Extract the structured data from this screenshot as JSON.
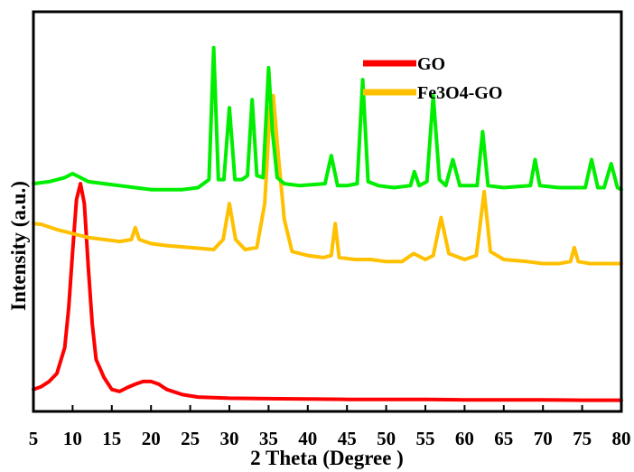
{
  "chart_data": {
    "type": "line",
    "title": "",
    "xlabel": "2 Theta (Degree )",
    "ylabel": "Intensity (a.u.)",
    "xlim": [
      5,
      80
    ],
    "ylim": [
      0,
      10
    ],
    "x_ticks": [
      "5",
      "10",
      "15",
      "20",
      "25",
      "30",
      "35",
      "40",
      "45",
      "50",
      "55",
      "60",
      "65",
      "70",
      "75",
      "80"
    ],
    "y_ticks_shown": false,
    "grid": false,
    "legend_position": "top-right",
    "series": [
      {
        "name": "GO",
        "color": "#ff0000",
        "x": [
          5,
          6,
          7,
          8,
          9,
          9.5,
          10,
          10.5,
          11,
          11.5,
          12,
          12.5,
          13,
          14,
          15,
          16,
          17,
          18,
          19,
          20,
          21,
          22,
          24,
          26,
          30,
          35,
          40,
          45,
          50,
          55,
          60,
          65,
          70,
          75,
          80
        ],
        "values": [
          0.55,
          0.62,
          0.75,
          0.95,
          1.6,
          2.6,
          4.0,
          5.3,
          5.7,
          5.2,
          3.6,
          2.2,
          1.3,
          0.85,
          0.55,
          0.5,
          0.6,
          0.68,
          0.75,
          0.75,
          0.68,
          0.55,
          0.42,
          0.36,
          0.33,
          0.32,
          0.31,
          0.3,
          0.3,
          0.3,
          0.29,
          0.29,
          0.29,
          0.28,
          0.28
        ]
      },
      {
        "name": "Fe3O4-GO",
        "color": "#ffc000",
        "x": [
          5,
          6,
          8,
          10,
          12,
          14,
          16,
          17.5,
          18,
          18.5,
          20,
          22,
          25,
          28,
          29.2,
          30,
          30.8,
          32,
          33.5,
          34.5,
          35.2,
          35.6,
          36.2,
          37,
          38,
          40,
          42,
          43,
          43.5,
          44,
          46,
          48,
          50,
          52,
          53.5,
          55,
          56,
          57,
          58,
          60,
          61.5,
          62.5,
          63.3,
          65,
          68,
          70,
          72,
          73.5,
          74,
          74.5,
          76,
          78,
          80
        ],
        "values": [
          4.7,
          4.68,
          4.55,
          4.45,
          4.35,
          4.3,
          4.25,
          4.3,
          4.6,
          4.3,
          4.2,
          4.15,
          4.1,
          4.05,
          4.3,
          5.2,
          4.3,
          4.05,
          4.1,
          5.2,
          7.6,
          7.9,
          6.5,
          4.8,
          4.0,
          3.9,
          3.85,
          3.9,
          4.7,
          3.85,
          3.8,
          3.8,
          3.75,
          3.75,
          3.95,
          3.8,
          3.9,
          4.85,
          3.95,
          3.8,
          3.9,
          5.5,
          4.0,
          3.8,
          3.75,
          3.7,
          3.7,
          3.75,
          4.1,
          3.75,
          3.7,
          3.7,
          3.7
        ]
      },
      {
        "name": "",
        "color": "#00ee00",
        "x": [
          5,
          7,
          9,
          10,
          11,
          12,
          14,
          16,
          18,
          20,
          22,
          24,
          26,
          27.4,
          28.0,
          28.6,
          29.3,
          30.0,
          30.7,
          31.6,
          32.3,
          32.9,
          33.5,
          34.3,
          35.0,
          35.5,
          36.1,
          37,
          39,
          42.2,
          43.0,
          43.8,
          45,
          46.3,
          47.0,
          47.7,
          49,
          51,
          53.1,
          53.6,
          54.2,
          55.2,
          56.0,
          56.8,
          57.6,
          58.5,
          59.4,
          61.6,
          62.3,
          63.0,
          65,
          68.4,
          69.0,
          69.6,
          72,
          75.4,
          76.2,
          77.0,
          77.8,
          78.7,
          79.5,
          80
        ],
        "values": [
          5.7,
          5.75,
          5.85,
          5.95,
          5.85,
          5.75,
          5.7,
          5.65,
          5.6,
          5.55,
          5.55,
          5.55,
          5.6,
          5.8,
          9.1,
          5.8,
          5.8,
          7.6,
          5.8,
          5.8,
          5.9,
          7.8,
          5.9,
          5.85,
          8.6,
          7.0,
          5.85,
          5.7,
          5.65,
          5.7,
          6.4,
          5.65,
          5.65,
          5.7,
          8.3,
          5.75,
          5.65,
          5.6,
          5.65,
          6.0,
          5.65,
          5.75,
          7.9,
          5.8,
          5.65,
          6.3,
          5.65,
          5.65,
          7.0,
          5.65,
          5.6,
          5.65,
          6.3,
          5.65,
          5.6,
          5.6,
          6.3,
          5.6,
          5.6,
          6.2,
          5.6,
          5.55
        ]
      }
    ]
  }
}
